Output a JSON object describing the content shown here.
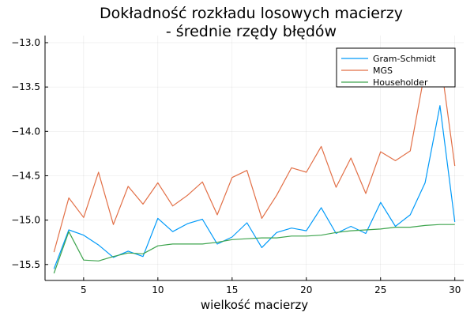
{
  "chart_data": {
    "type": "line",
    "title_line1": "Dokładność rozkładu losowych macierzy",
    "title_line2": " -  średnie rzędy błędów",
    "xlabel": "wielkość macierzy",
    "ylabel": "",
    "xlim": [
      2.4,
      30.6
    ],
    "ylim": [
      -15.68,
      -12.92
    ],
    "grid": true,
    "legend_position": "top-right",
    "x_ticks": [
      5,
      10,
      15,
      20,
      25,
      30
    ],
    "y_ticks": [
      -15.5,
      -15.0,
      -14.5,
      -14.0,
      -13.5,
      -13.0
    ],
    "x_tick_labels": [
      "5",
      "10",
      "15",
      "20",
      "25",
      "30"
    ],
    "y_tick_labels": [
      "−15.5",
      "−15.0",
      "−14.5",
      "−14.0",
      "−13.5",
      "−13.0"
    ],
    "x": [
      3,
      4,
      5,
      6,
      7,
      8,
      9,
      10,
      11,
      12,
      13,
      14,
      15,
      16,
      17,
      18,
      19,
      20,
      21,
      22,
      23,
      24,
      25,
      26,
      27,
      28,
      29,
      30
    ],
    "series": [
      {
        "name": "Gram-Schmidt",
        "color": "#009af9",
        "values": [
          -15.55,
          -15.11,
          -15.17,
          -15.28,
          -15.42,
          -15.35,
          -15.41,
          -14.98,
          -15.13,
          -15.04,
          -14.99,
          -15.27,
          -15.19,
          -15.03,
          -15.31,
          -15.14,
          -15.09,
          -15.12,
          -14.86,
          -15.15,
          -15.07,
          -15.15,
          -14.8,
          -15.07,
          -14.94,
          -14.58,
          -13.71,
          -15.02
        ]
      },
      {
        "name": "MGS",
        "color": "#e26f46",
        "values": [
          -15.36,
          -14.75,
          -14.97,
          -14.46,
          -15.05,
          -14.62,
          -14.82,
          -14.58,
          -14.84,
          -14.72,
          -14.57,
          -14.94,
          -14.52,
          -14.44,
          -14.98,
          -14.72,
          -14.41,
          -14.46,
          -14.17,
          -14.63,
          -14.3,
          -14.7,
          -14.23,
          -14.33,
          -14.22,
          -13.31,
          -13.15,
          -14.39
        ]
      },
      {
        "name": "Householder",
        "color": "#3da44d",
        "values": [
          -15.6,
          -15.13,
          -15.45,
          -15.46,
          -15.41,
          -15.37,
          -15.38,
          -15.29,
          -15.27,
          -15.27,
          -15.27,
          -15.25,
          -15.22,
          -15.21,
          -15.2,
          -15.2,
          -15.18,
          -15.18,
          -15.17,
          -15.14,
          -15.12,
          -15.11,
          -15.1,
          -15.08,
          -15.08,
          -15.06,
          -15.05,
          -15.05
        ]
      }
    ]
  }
}
